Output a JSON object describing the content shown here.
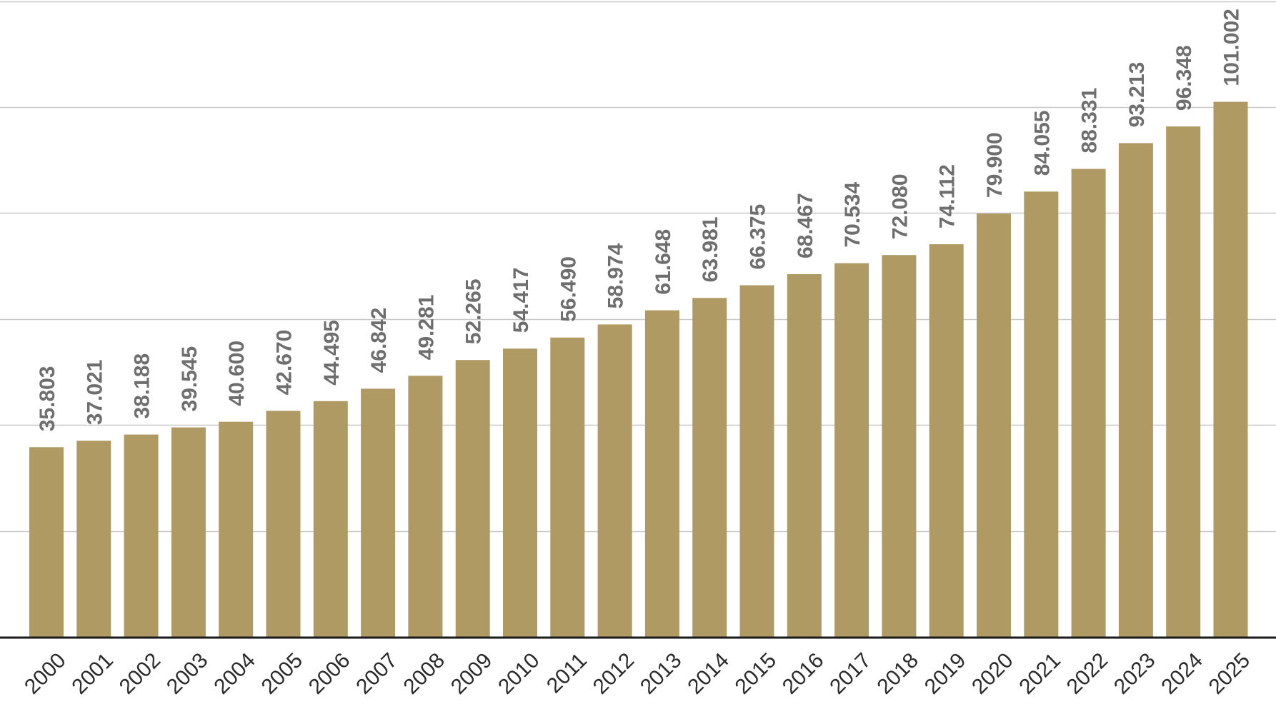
{
  "chart_data": {
    "type": "bar",
    "categories": [
      "2000",
      "2001",
      "2002",
      "2003",
      "2004",
      "2005",
      "2006",
      "2007",
      "2008",
      "2009",
      "2010",
      "2011",
      "2012",
      "2013",
      "2014",
      "2015",
      "2016",
      "2017",
      "2018",
      "2019",
      "2020",
      "2021",
      "2022",
      "2023",
      "2024",
      "2025"
    ],
    "values": [
      35.803,
      37.021,
      38.188,
      39.545,
      40.6,
      42.67,
      44.495,
      46.842,
      49.281,
      52.265,
      54.417,
      56.49,
      58.974,
      61.648,
      63.981,
      66.375,
      68.467,
      70.534,
      72.08,
      74.112,
      79.9,
      84.055,
      88.331,
      93.213,
      96.348,
      101.002
    ],
    "value_labels": [
      "35.803",
      "37.021",
      "38.188",
      "39.545",
      "40.600",
      "42.670",
      "44.495",
      "46.842",
      "49.281",
      "52.265",
      "54.417",
      "56.490",
      "58.974",
      "61.648",
      "63.981",
      "66.375",
      "68.467",
      "70.534",
      "72.080",
      "74.112",
      "79.900",
      "84.055",
      "88.331",
      "93.213",
      "96.348",
      "101.002"
    ],
    "title": "",
    "xlabel": "",
    "ylabel": "",
    "ylim": [
      0,
      120
    ],
    "grid": true,
    "legend": "none",
    "colors": {
      "bar": "#b09a64",
      "grid": "#c8c8c8",
      "axis": "#1a1a1a",
      "value_label": "#6e6e6e",
      "tick_label": "#2a2a2a"
    }
  }
}
